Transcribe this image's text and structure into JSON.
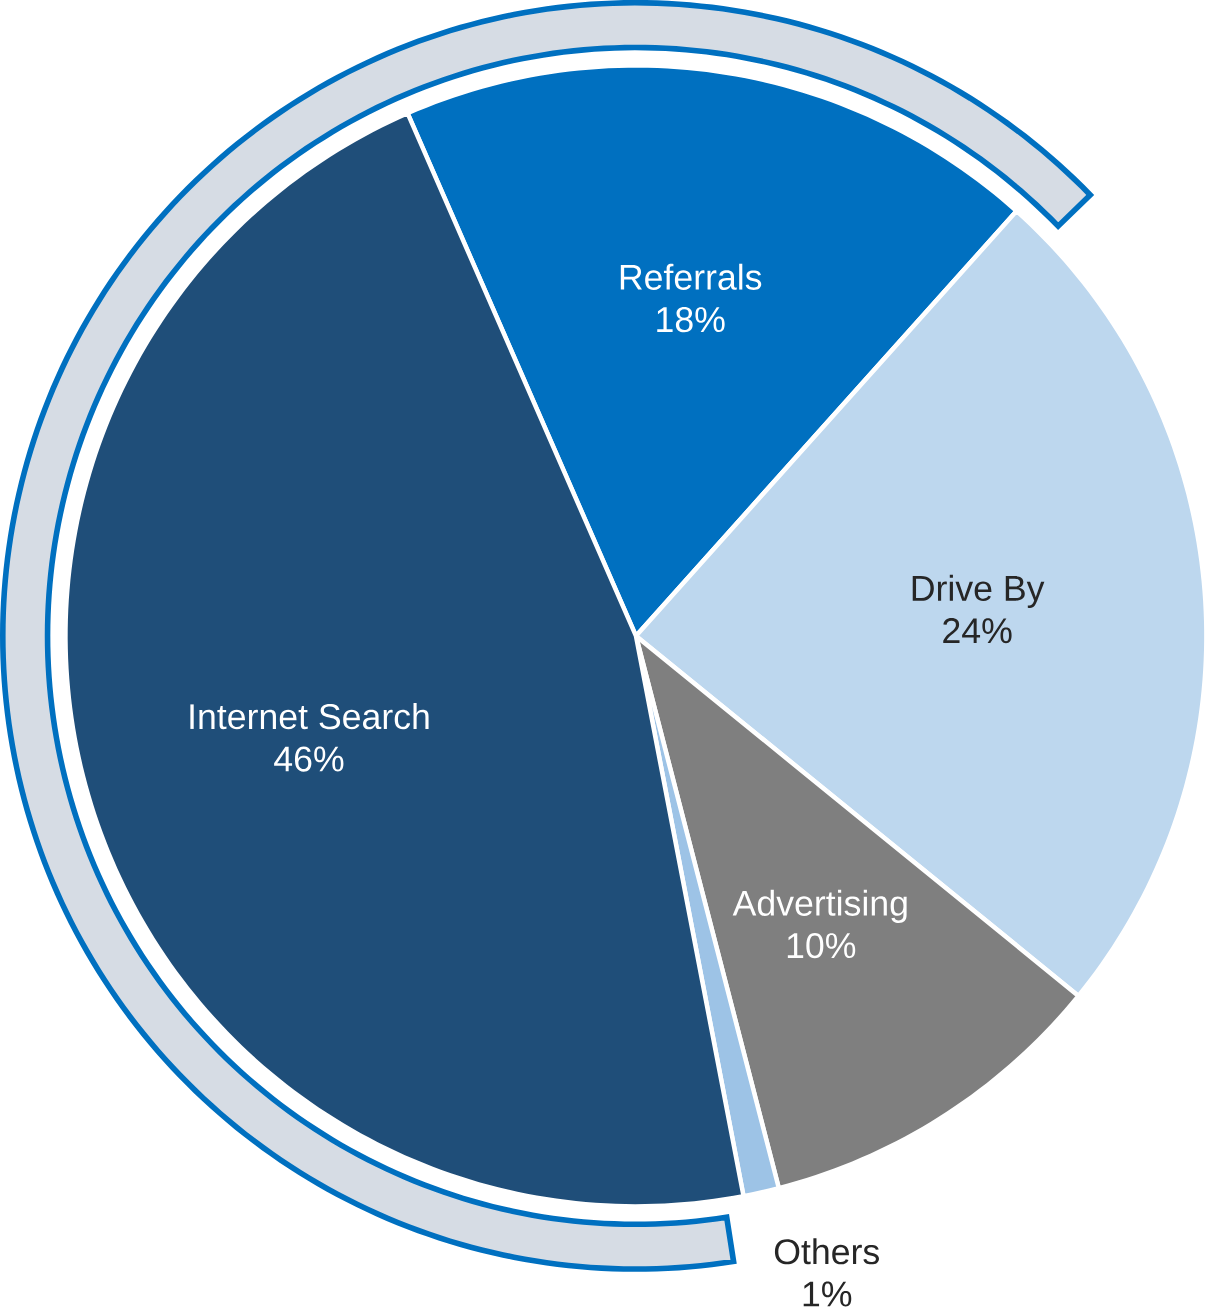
{
  "chart_data": {
    "type": "pie",
    "categories": [
      "Referrals",
      "Drive By",
      "Advertising",
      "Others",
      "Internet Search"
    ],
    "values": [
      18,
      24,
      10,
      1,
      46
    ],
    "value_labels": [
      "18%",
      "24%",
      "10%",
      "1%",
      "46%"
    ],
    "colors": [
      "#0070c0",
      "#bdd7ee",
      "#7f7f7f",
      "#9dc3e6",
      "#1f4e79"
    ]
  }
}
